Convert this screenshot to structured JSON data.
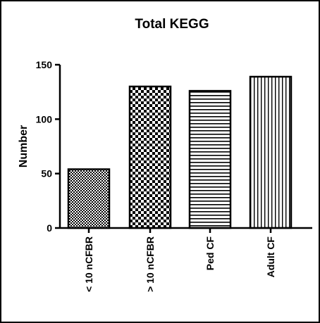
{
  "chart_data": {
    "type": "bar",
    "title": "Total KEGG",
    "xlabel": "",
    "ylabel": "Number",
    "ylim": [
      0,
      150
    ],
    "yticks": [
      0,
      50,
      100,
      150
    ],
    "grid": false,
    "categories": [
      "< 10 nCFBR",
      "> 10 nCFBR",
      "Ped CF",
      "Adult CF"
    ],
    "values": [
      54,
      130,
      126,
      139
    ],
    "patterns": [
      "fine-checker",
      "coarse-checker",
      "horizontal-lines",
      "vertical-lines"
    ]
  }
}
